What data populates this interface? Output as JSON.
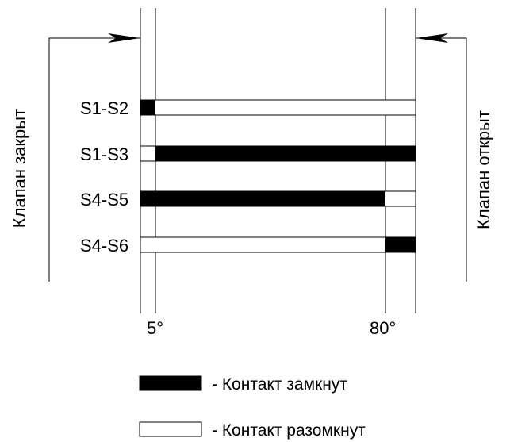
{
  "left_side_label": "Клапан закрыт",
  "right_side_label": "Клапан открыт",
  "rows": [
    {
      "label": "S1-S2",
      "closed_ranges": [
        [
          0,
          5
        ]
      ]
    },
    {
      "label": "S1-S3",
      "closed_ranges": [
        [
          5,
          90
        ]
      ]
    },
    {
      "label": "S4-S5",
      "closed_ranges": [
        [
          0,
          80
        ]
      ]
    },
    {
      "label": "S4-S6",
      "closed_ranges": [
        [
          80,
          90
        ]
      ]
    }
  ],
  "markers": [
    {
      "value": 5,
      "label": "5°"
    },
    {
      "value": 80,
      "label": "80°"
    }
  ],
  "legend": {
    "closed_label": "- Контакт замкнут",
    "open_label": "- Контакт разомкнут"
  }
}
